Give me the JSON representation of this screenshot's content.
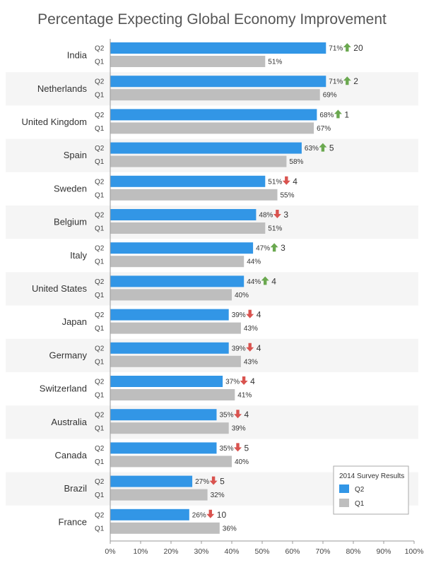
{
  "chart_data": {
    "type": "bar",
    "orientation": "horizontal",
    "title": "Percentage Expecting Global Economy Improvement",
    "xlabel": "",
    "ylabel": "",
    "xlim": [
      0,
      100
    ],
    "x_ticks": [
      "0%",
      "10%",
      "20%",
      "30%",
      "40%",
      "50%",
      "60%",
      "70%",
      "80%",
      "90%",
      "100%"
    ],
    "grid": false,
    "legend": {
      "title": "2014 Survey Results",
      "position": "bottom-right",
      "entries": [
        "Q2",
        "Q1"
      ]
    },
    "series_labels": [
      "Q2",
      "Q1"
    ],
    "colors": {
      "Q2": "#3296e6",
      "Q1": "#bebebe",
      "up": "#6aa84f",
      "down": "#d9534f",
      "stripe": "#f5f5f5"
    },
    "categories": [
      "India",
      "Netherlands",
      "United Kingdom",
      "Spain",
      "Sweden",
      "Belgium",
      "Italy",
      "United States",
      "Japan",
      "Germany",
      "Switzerland",
      "Australia",
      "Canada",
      "Brazil",
      "France"
    ],
    "series": [
      {
        "name": "Q2",
        "values": [
          71,
          71,
          68,
          63,
          51,
          48,
          47,
          44,
          39,
          39,
          37,
          35,
          35,
          27,
          26
        ]
      },
      {
        "name": "Q1",
        "values": [
          51,
          69,
          67,
          58,
          55,
          51,
          44,
          40,
          43,
          43,
          41,
          39,
          40,
          32,
          36
        ]
      }
    ],
    "changes": [
      {
        "direction": "up",
        "value": "20"
      },
      {
        "direction": "up",
        "value": "2"
      },
      {
        "direction": "up",
        "value": "1"
      },
      {
        "direction": "up",
        "value": "5"
      },
      {
        "direction": "down",
        "value": "4"
      },
      {
        "direction": "down",
        "value": "3"
      },
      {
        "direction": "up",
        "value": "3"
      },
      {
        "direction": "up",
        "value": "4"
      },
      {
        "direction": "down",
        "value": "4"
      },
      {
        "direction": "down",
        "value": "4"
      },
      {
        "direction": "down",
        "value": "4"
      },
      {
        "direction": "down",
        "value": "4"
      },
      {
        "direction": "down",
        "value": "5"
      },
      {
        "direction": "down",
        "value": "5"
      },
      {
        "direction": "down",
        "value": "10"
      }
    ]
  }
}
